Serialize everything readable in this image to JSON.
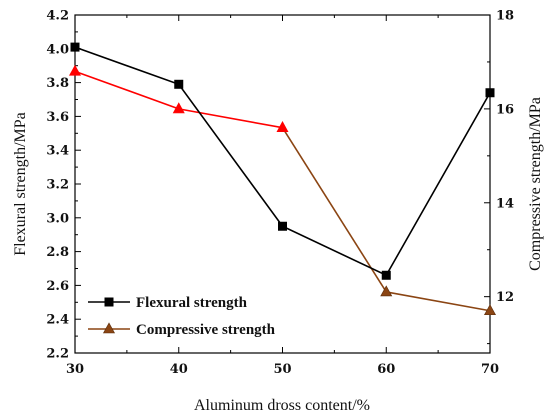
{
  "chart_data": {
    "type": "line",
    "x": [
      30,
      40,
      50,
      60,
      70
    ],
    "xlabel": "Aluminum dross content/%",
    "ylabel_left": "Flexural strength/MPa",
    "ylabel_right": "Compressive strength/MPa",
    "xlim": [
      30,
      70
    ],
    "ylim_left": [
      2.2,
      4.2
    ],
    "ylim_right": [
      10.8,
      18
    ],
    "x_ticks": [
      "30",
      "40",
      "50",
      "60",
      "70"
    ],
    "y_left_ticks": [
      "2.2",
      "2.4",
      "2.6",
      "2.8",
      "3.0",
      "3.2",
      "3.4",
      "3.6",
      "3.8",
      "4.0",
      "4.2"
    ],
    "y_right_ticks": [
      "12",
      "14",
      "16",
      "18"
    ],
    "legend_position": "bottom-left",
    "grid": false,
    "series": [
      {
        "name": "Flexural strength",
        "axis": "left",
        "marker": "square",
        "color": "#000000",
        "values": [
          4.01,
          3.79,
          2.95,
          2.66,
          3.74
        ]
      },
      {
        "name": "Compressive strength",
        "axis": "right",
        "marker": "triangle",
        "color": "#ff0000",
        "marker_color": "#8b4513",
        "values": [
          16.8,
          16.0,
          15.6,
          12.1,
          11.7
        ]
      }
    ]
  }
}
